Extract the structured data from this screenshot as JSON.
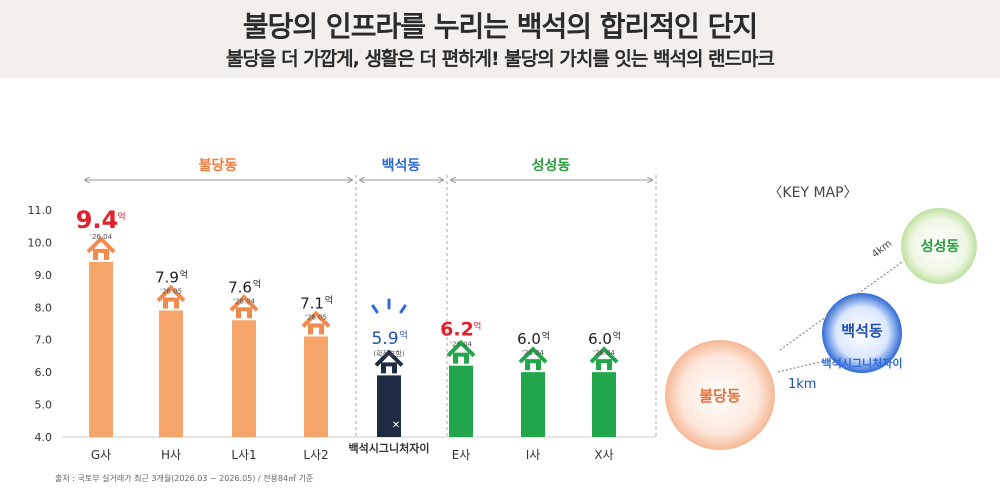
{
  "header": {
    "title": "불당의 인프라를 누리는 백석의 합리적인 단지",
    "subtitle": "불당을 더 가깝게, 생활은 더 편하게! 불당의 가치를 잇는 백석의 랜드마크"
  },
  "chart_data": {
    "type": "bar",
    "title": "",
    "xlabel": "",
    "ylabel": "",
    "ylim": [
      4.0,
      11.0
    ],
    "yticks": [
      "4.0",
      "5.0",
      "6.0",
      "7.0",
      "8.0",
      "9.0",
      "10.0",
      "11.0"
    ],
    "unit": "억",
    "categories": [
      "G사",
      "H사",
      "L사1",
      "L사2",
      "백석시그니처자이",
      "E사",
      "I사",
      "X사"
    ],
    "values": [
      9.4,
      7.9,
      7.6,
      7.1,
      5.9,
      6.2,
      6.0,
      6.0
    ],
    "value_labels": [
      "9.4",
      "7.9",
      "7.6",
      "7.1",
      "5.9",
      "6.2",
      "6.0",
      "6.0"
    ],
    "dates": [
      "'26.04",
      "'26.05",
      "'26.04",
      "'26.05",
      "",
      "'26.04",
      "'26.04",
      "'26.04"
    ],
    "notes": [
      "",
      "",
      "",
      "",
      "(확장포함)",
      "",
      "",
      ""
    ],
    "groups": [
      {
        "name": "불당동",
        "color": "#f07b3f"
      },
      {
        "name": "백석동",
        "color": "#2f6bd6"
      },
      {
        "name": "성성동",
        "color": "#2a9d3f"
      }
    ],
    "colors": {
      "buldang_bar": "#f5a46a",
      "buldang_roof": "#f28a4e",
      "baekseok_bar": "#1f2a44",
      "baekseok_ray": "#2f6bd6",
      "seongseong_bar": "#22a64b",
      "highlight_value": "#e0202d"
    }
  },
  "key_map": {
    "title": "〈KEY MAP〉",
    "buldang": "불당동",
    "baekseok": "백석동",
    "baekseok_sub": "백석시그니처자이",
    "seongseong": "성성동",
    "dist_seongseong": "4km",
    "dist_buldang": "1km"
  },
  "source": "출처 : 국토부 실거래가 최근 3개월(2026.03 ~ 2026.05) / 전용84㎡ 기준"
}
